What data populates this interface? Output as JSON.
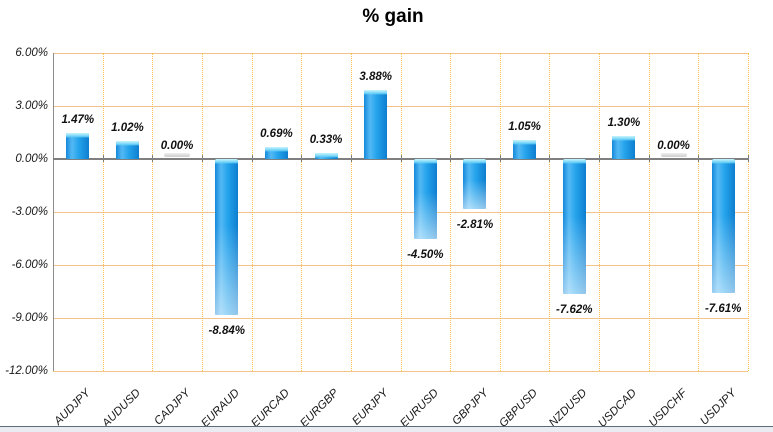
{
  "chart_data": {
    "type": "bar",
    "title": "% gain",
    "categories": [
      "AUDJPY",
      "AUDUSD",
      "CADJPY",
      "EURAUD",
      "EURCAD",
      "EURGBP",
      "EURJPY",
      "EURUSD",
      "GBPJPY",
      "GBPUSD",
      "NZDUSD",
      "USDCAD",
      "USDCHF",
      "USDJPY"
    ],
    "values": [
      1.47,
      1.02,
      0.0,
      -8.84,
      0.69,
      0.33,
      3.88,
      -4.5,
      -2.81,
      1.05,
      -7.62,
      1.3,
      0.0,
      -7.61
    ],
    "data_labels": [
      "1.47%",
      "1.02%",
      "0.00%",
      "-8.84%",
      "0.69%",
      "0.33%",
      "3.88%",
      "-4.50%",
      "-2.81%",
      "1.05%",
      "-7.62%",
      "1.30%",
      "0.00%",
      "-7.61%"
    ],
    "ytick_labels": [
      "6.00%",
      "3.00%",
      "0.00%",
      "-3.00%",
      "-6.00%",
      "-9.00%",
      "-12.00%"
    ],
    "yticks": [
      6,
      3,
      0,
      -3,
      -6,
      -9,
      -12
    ],
    "ylim": [
      -12,
      6
    ],
    "ytick_step": 3,
    "xlabel": "",
    "ylabel": "",
    "legend": "none",
    "grid": {
      "horizontal": "solid",
      "vertical": "dotted"
    },
    "colors": {
      "background": "#FFFFFF",
      "bar_fill": "#1B9BE8",
      "bar_fill_light": "#54B9F4",
      "bar_fill_dark": "#0E7ECF",
      "bar_cap_highlight": "#C9F4FD",
      "zero_bar_dash": "#D9D9D9",
      "grid_horizontal": "#F5C28C",
      "grid_vertical": "#FFC14D",
      "axis_line": "#8C8C8C",
      "zero_line": "#7F7F7F",
      "title_color": "#000000",
      "label_color": "#1A1A1A"
    }
  }
}
